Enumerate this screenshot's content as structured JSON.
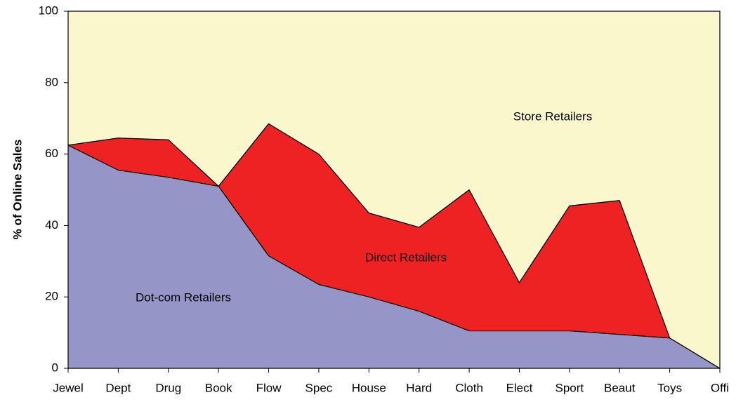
{
  "chart_data": {
    "type": "stacked_area",
    "y_label": "% of Online Sales",
    "categories": [
      "Jewel",
      "Dept",
      "Drug",
      "Book",
      "Flow",
      "Spec",
      "House",
      "Hard",
      "Cloth",
      "Elect",
      "Sport",
      "Beaut",
      "Toys",
      "Offi"
    ],
    "series": [
      {
        "name": "Dot-com Retailers",
        "color": "#9595c8",
        "values": [
          62.5,
          55.5,
          53.5,
          51,
          31.5,
          23.5,
          20,
          16,
          10.5,
          10.5,
          10.5,
          9.5,
          8.5,
          0
        ]
      },
      {
        "name": "Direct Retailers",
        "color": "#ee2222",
        "values": [
          0,
          9,
          10.5,
          0,
          37,
          36.5,
          23.5,
          23.5,
          39.5,
          13.5,
          35,
          37.5,
          0,
          0
        ]
      },
      {
        "name": "Store Retailers",
        "color": "#fbf7cc",
        "values": [
          37.5,
          35.5,
          36,
          49,
          31.5,
          40,
          56.5,
          60.5,
          50,
          76,
          54.5,
          53,
          91.5,
          100
        ]
      }
    ],
    "ylim": [
      0,
      100
    ],
    "yticks": [
      0,
      20,
      40,
      60,
      80,
      100
    ]
  }
}
